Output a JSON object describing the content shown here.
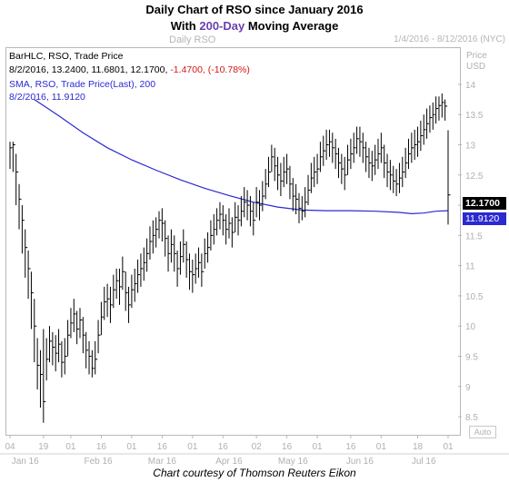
{
  "title_line1": "Daily Chart of RSO since January 2016",
  "title_line2_prefix": "With ",
  "title_line2_highlight": "200-Day",
  "title_line2_suffix": " Moving Average",
  "chart_name": "Daily RSO",
  "date_range": "1/4/2016 - 8/12/2016 (NYC)",
  "axis_header": [
    "Price",
    "USD"
  ],
  "auto_button": "Auto",
  "footer": "Chart courtesy of Thomson Reuters Eikon",
  "legend": {
    "line1": "BarHLC, RSO, Trade Price",
    "line2_main": "8/2/2016, 13.2400, 11.6801, 12.1700,",
    "line2_change": "-1.4700, (-10.78%)",
    "line3": "SMA, RSO, Trade Price(Last),  200",
    "line4": "8/2/2016, 11.9120"
  },
  "price_labels": {
    "last": "12.1700",
    "sma": "11.9120"
  },
  "colors": {
    "bars": "#000000",
    "sma": "#2a2ad0",
    "negative": "#d01818",
    "highlight": "#6a3fb0",
    "grid": "#bdbdbd"
  },
  "chart_data": {
    "type": "ohlc_bar",
    "ylim": [
      8.2,
      14.6
    ],
    "yticks": [
      8.5,
      9,
      9.5,
      10,
      10.5,
      11,
      11.5,
      12,
      12.5,
      13,
      13.5,
      14
    ],
    "ytick_labels": [
      "8.5",
      "9",
      "9.5",
      "10",
      "10.5",
      "11",
      "11.5",
      "12",
      "12.5",
      "13",
      "13.5",
      "14"
    ],
    "xticks": [
      {
        "idx": 0,
        "label": "04"
      },
      {
        "idx": 11,
        "label": "19"
      },
      {
        "idx": 20,
        "label": "01"
      },
      {
        "idx": 30,
        "label": "16"
      },
      {
        "idx": 40,
        "label": "01"
      },
      {
        "idx": 50,
        "label": "16"
      },
      {
        "idx": 60,
        "label": "01"
      },
      {
        "idx": 70,
        "label": "16"
      },
      {
        "idx": 81,
        "label": "02"
      },
      {
        "idx": 91,
        "label": "16"
      },
      {
        "idx": 101,
        "label": "01"
      },
      {
        "idx": 112,
        "label": "16"
      },
      {
        "idx": 122,
        "label": "01"
      },
      {
        "idx": 134,
        "label": "18"
      },
      {
        "idx": 144,
        "label": "01"
      }
    ],
    "month_labels": [
      {
        "idx": 5,
        "label": "Jan 16"
      },
      {
        "idx": 29,
        "label": "Feb 16"
      },
      {
        "idx": 50,
        "label": "Mar 16"
      },
      {
        "idx": 72,
        "label": "Apr 16"
      },
      {
        "idx": 93,
        "label": "May 16"
      },
      {
        "idx": 115,
        "label": "Jun 16"
      },
      {
        "idx": 136,
        "label": "Jul 16"
      }
    ],
    "series": [
      {
        "name": "RSO Trade Price",
        "close": [
          12.95,
          13.0,
          12.55,
          12.1,
          11.75,
          11.3,
          10.95,
          10.55,
          10.0,
          9.35,
          9.2,
          8.75,
          9.45,
          9.75,
          9.65,
          9.55,
          9.7,
          9.4,
          9.5,
          9.85,
          10.05,
          10.2,
          9.95,
          10.1,
          9.85,
          9.6,
          9.5,
          9.3,
          9.45,
          9.85,
          10.15,
          10.4,
          10.45,
          10.35,
          10.6,
          10.75,
          10.65,
          10.9,
          10.55,
          10.35,
          10.6,
          10.7,
          10.85,
          10.95,
          11.05,
          11.2,
          11.4,
          11.5,
          11.6,
          11.75,
          11.7,
          11.45,
          11.2,
          11.35,
          11.2,
          10.95,
          11.15,
          11.35,
          11.1,
          10.9,
          10.85,
          10.95,
          11.05,
          10.9,
          11.2,
          11.3,
          11.5,
          11.6,
          11.75,
          11.85,
          11.75,
          11.6,
          11.7,
          11.55,
          11.8,
          11.75,
          11.9,
          12.05,
          12.0,
          11.9,
          11.75,
          12.05,
          12.0,
          12.15,
          12.35,
          12.55,
          12.8,
          12.65,
          12.5,
          12.4,
          12.55,
          12.6,
          12.35,
          12.15,
          12.1,
          11.95,
          11.9,
          12.05,
          12.25,
          12.45,
          12.55,
          12.6,
          12.8,
          12.9,
          13.0,
          13.05,
          12.95,
          12.85,
          12.7,
          12.6,
          12.5,
          12.75,
          12.85,
          12.95,
          13.1,
          13.05,
          12.95,
          12.8,
          12.7,
          12.65,
          12.75,
          12.85,
          12.95,
          12.7,
          12.55,
          12.5,
          12.4,
          12.35,
          12.45,
          12.55,
          12.7,
          12.85,
          12.95,
          13.0,
          13.05,
          13.15,
          13.25,
          13.35,
          13.45,
          13.5,
          13.6,
          13.65,
          13.7,
          13.64,
          12.17
        ],
        "high": [
          13.05,
          13.05,
          12.85,
          12.35,
          12.0,
          11.6,
          11.25,
          10.9,
          10.45,
          9.8,
          9.6,
          9.95,
          9.8,
          10.0,
          9.9,
          9.85,
          9.95,
          9.75,
          9.8,
          10.1,
          10.3,
          10.45,
          10.25,
          10.3,
          10.15,
          9.9,
          9.75,
          9.6,
          9.75,
          10.1,
          10.4,
          10.65,
          10.7,
          10.65,
          10.85,
          10.95,
          10.95,
          11.15,
          10.9,
          10.65,
          10.85,
          10.95,
          11.1,
          11.2,
          11.3,
          11.45,
          11.65,
          11.75,
          11.8,
          11.9,
          11.95,
          11.75,
          11.5,
          11.6,
          11.5,
          11.25,
          11.4,
          11.6,
          11.4,
          11.2,
          11.1,
          11.2,
          11.3,
          11.2,
          11.45,
          11.55,
          11.75,
          11.85,
          11.95,
          12.05,
          12.0,
          11.85,
          11.95,
          11.8,
          12.05,
          12.0,
          12.15,
          12.3,
          12.25,
          12.15,
          12.05,
          12.3,
          12.25,
          12.4,
          12.6,
          12.8,
          13.0,
          12.95,
          12.8,
          12.7,
          12.8,
          12.85,
          12.65,
          12.45,
          12.35,
          12.2,
          12.15,
          12.3,
          12.5,
          12.7,
          12.8,
          12.85,
          13.05,
          13.15,
          13.25,
          13.25,
          13.2,
          13.1,
          12.95,
          12.85,
          12.8,
          13.0,
          13.1,
          13.2,
          13.3,
          13.3,
          13.2,
          13.05,
          12.95,
          12.9,
          13.0,
          13.1,
          13.2,
          13.0,
          12.85,
          12.75,
          12.65,
          12.6,
          12.7,
          12.8,
          12.95,
          13.1,
          13.2,
          13.25,
          13.3,
          13.4,
          13.5,
          13.6,
          13.65,
          13.7,
          13.8,
          13.8,
          13.85,
          13.75,
          13.24
        ],
        "low": [
          12.6,
          12.55,
          12.0,
          11.6,
          11.2,
          10.8,
          10.45,
          9.95,
          9.4,
          8.95,
          8.65,
          8.4,
          9.1,
          9.4,
          9.35,
          9.25,
          9.4,
          9.15,
          9.2,
          9.5,
          9.8,
          9.9,
          9.7,
          9.8,
          9.55,
          9.3,
          9.2,
          9.15,
          9.2,
          9.55,
          9.85,
          10.1,
          10.15,
          10.05,
          10.3,
          10.45,
          10.35,
          10.6,
          10.25,
          10.05,
          10.3,
          10.4,
          10.55,
          10.65,
          10.75,
          10.9,
          11.1,
          11.2,
          11.3,
          11.45,
          11.4,
          11.15,
          10.9,
          11.05,
          10.9,
          10.65,
          10.85,
          11.05,
          10.8,
          10.6,
          10.55,
          10.7,
          10.8,
          10.65,
          10.95,
          11.05,
          11.25,
          11.35,
          11.5,
          11.6,
          11.5,
          11.35,
          11.45,
          11.3,
          11.55,
          11.5,
          11.65,
          11.8,
          11.75,
          11.65,
          11.5,
          11.8,
          11.75,
          11.9,
          12.1,
          12.3,
          12.55,
          12.4,
          12.25,
          12.15,
          12.3,
          12.35,
          12.1,
          11.9,
          11.85,
          11.7,
          11.75,
          11.8,
          12.0,
          12.2,
          12.3,
          12.35,
          12.55,
          12.65,
          12.75,
          12.8,
          12.7,
          12.6,
          12.45,
          12.35,
          12.25,
          12.5,
          12.6,
          12.7,
          12.85,
          12.8,
          12.7,
          12.55,
          12.45,
          12.4,
          12.5,
          12.6,
          12.7,
          12.45,
          12.3,
          12.25,
          12.2,
          12.15,
          12.2,
          12.3,
          12.45,
          12.6,
          12.7,
          12.75,
          12.8,
          12.9,
          13.0,
          13.1,
          13.2,
          13.25,
          13.35,
          13.4,
          13.45,
          13.4,
          11.68
        ]
      },
      {
        "name": "SMA 200",
        "x": [
          8,
          16,
          24,
          32,
          40,
          48,
          56,
          64,
          72,
          80,
          88,
          96,
          104,
          112,
          120,
          128,
          132,
          136,
          140,
          144
        ],
        "values": [
          13.75,
          13.48,
          13.2,
          12.95,
          12.75,
          12.58,
          12.42,
          12.28,
          12.16,
          12.05,
          11.97,
          11.92,
          11.91,
          11.91,
          11.9,
          11.88,
          11.86,
          11.87,
          11.9,
          11.91
        ]
      }
    ]
  }
}
